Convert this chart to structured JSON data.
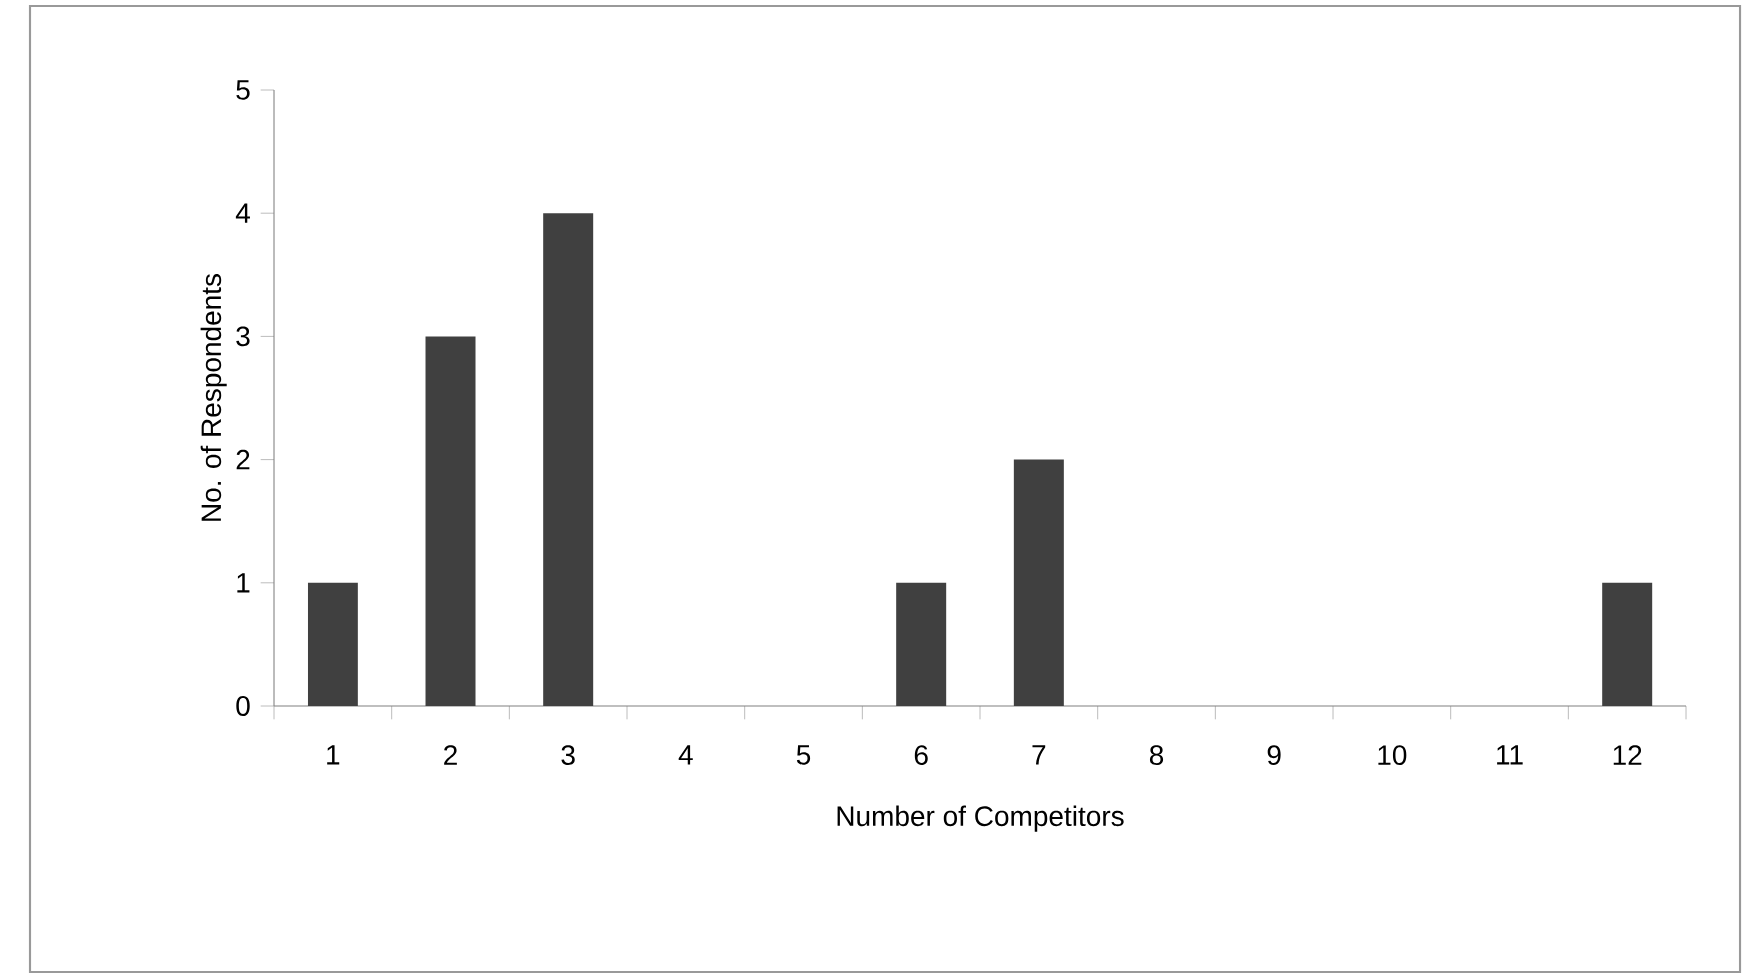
{
  "chart_data": {
    "type": "bar",
    "xlabel": "Number of Competitors",
    "ylabel": "No. of Respondents",
    "categories": [
      "1",
      "2",
      "3",
      "4",
      "5",
      "6",
      "7",
      "8",
      "9",
      "10",
      "11",
      "12"
    ],
    "values": [
      1,
      3,
      4,
      0,
      0,
      1,
      2,
      0,
      0,
      0,
      0,
      1
    ],
    "color": "#404040",
    "ylim": [
      0,
      5
    ],
    "yticks": [
      0,
      1,
      2,
      3,
      4,
      5
    ]
  }
}
